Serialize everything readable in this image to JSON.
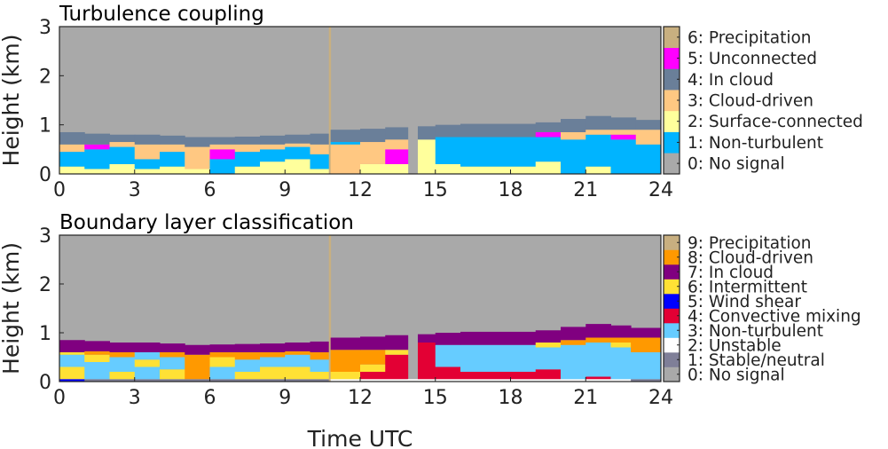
{
  "chart_data": [
    {
      "type": "heatmap",
      "title": "Turbulence coupling",
      "ylabel": "Height (km)",
      "xlabel": "",
      "xlim": [
        0,
        24
      ],
      "ylim": [
        0,
        3
      ],
      "xticks": [
        0,
        3,
        6,
        9,
        12,
        15,
        18,
        21,
        24
      ],
      "yticks": [
        0,
        1,
        2,
        3
      ],
      "classes": [
        {
          "value": 0,
          "label": "0: No signal",
          "color": "#a9a9a9"
        },
        {
          "value": 1,
          "label": "1: Non-turbulent",
          "color": "#00b4ff"
        },
        {
          "value": 2,
          "label": "2: Surface-connected",
          "color": "#ffff9c"
        },
        {
          "value": 3,
          "label": "3: Cloud-driven",
          "color": "#ffc882"
        },
        {
          "value": 4,
          "label": "4: In cloud",
          "color": "#6a7f99"
        },
        {
          "value": 5,
          "label": "5: Unconnected",
          "color": "#ff00ff"
        },
        {
          "value": 6,
          "label": "6: Precipitation",
          "color": "#c8af80"
        }
      ],
      "columns": [
        {
          "t": 0,
          "layers": [
            [
              2,
              0.15
            ],
            [
              1,
              0.45
            ],
            [
              3,
              0.6
            ],
            [
              4,
              0.85
            ]
          ]
        },
        {
          "t": 1,
          "layers": [
            [
              2,
              0.1
            ],
            [
              1,
              0.5
            ],
            [
              5,
              0.6
            ],
            [
              4,
              0.82
            ]
          ]
        },
        {
          "t": 2,
          "layers": [
            [
              2,
              0.2
            ],
            [
              1,
              0.55
            ],
            [
              3,
              0.65
            ],
            [
              4,
              0.8
            ]
          ]
        },
        {
          "t": 3,
          "layers": [
            [
              2,
              0.1
            ],
            [
              1,
              0.3
            ],
            [
              3,
              0.6
            ],
            [
              4,
              0.8
            ]
          ]
        },
        {
          "t": 4,
          "layers": [
            [
              2,
              0.15
            ],
            [
              1,
              0.45
            ],
            [
              3,
              0.6
            ],
            [
              4,
              0.78
            ]
          ]
        },
        {
          "t": 5,
          "layers": [
            [
              2,
              0.1
            ],
            [
              3,
              0.55
            ],
            [
              4,
              0.75
            ]
          ]
        },
        {
          "t": 6,
          "layers": [
            [
              1,
              0.3
            ],
            [
              5,
              0.5
            ],
            [
              3,
              0.6
            ],
            [
              4,
              0.75
            ]
          ]
        },
        {
          "t": 7,
          "layers": [
            [
              2,
              0.15
            ],
            [
              1,
              0.45
            ],
            [
              3,
              0.6
            ],
            [
              4,
              0.76
            ]
          ]
        },
        {
          "t": 8,
          "layers": [
            [
              2,
              0.25
            ],
            [
              1,
              0.5
            ],
            [
              3,
              0.6
            ],
            [
              4,
              0.78
            ]
          ]
        },
        {
          "t": 9,
          "layers": [
            [
              2,
              0.3
            ],
            [
              1,
              0.55
            ],
            [
              3,
              0.62
            ],
            [
              4,
              0.8
            ]
          ]
        },
        {
          "t": 10,
          "layers": [
            [
              2,
              0.1
            ],
            [
              1,
              0.4
            ],
            [
              3,
              0.6
            ],
            [
              4,
              0.82
            ]
          ]
        },
        {
          "t": 10.75,
          "layers": [
            [
              6,
              3
            ]
          ]
        },
        {
          "t": 10.82,
          "layers": [
            [
              3,
              0.6
            ],
            [
              1,
              0.65
            ],
            [
              4,
              0.9
            ]
          ]
        },
        {
          "t": 12,
          "layers": [
            [
              2,
              0.2
            ],
            [
              3,
              0.65
            ],
            [
              4,
              0.92
            ]
          ]
        },
        {
          "t": 13,
          "layers": [
            [
              2,
              0.2
            ],
            [
              5,
              0.5
            ],
            [
              3,
              0.7
            ],
            [
              4,
              0.95
            ]
          ]
        },
        {
          "t": 13.9,
          "layers": []
        },
        {
          "t": 14.3,
          "layers": [
            [
              2,
              0.7
            ],
            [
              4,
              0.97
            ]
          ]
        },
        {
          "t": 15,
          "layers": [
            [
              2,
              0.2
            ],
            [
              1,
              0.75
            ],
            [
              4,
              1.0
            ]
          ]
        },
        {
          "t": 16,
          "layers": [
            [
              2,
              0.15
            ],
            [
              1,
              0.75
            ],
            [
              4,
              1.02
            ]
          ]
        },
        {
          "t": 19,
          "layers": [
            [
              2,
              0.25
            ],
            [
              1,
              0.75
            ],
            [
              5,
              0.85
            ],
            [
              4,
              1.05
            ]
          ]
        },
        {
          "t": 20,
          "layers": [
            [
              1,
              0.7
            ],
            [
              3,
              0.85
            ],
            [
              4,
              1.12
            ]
          ]
        },
        {
          "t": 21,
          "layers": [
            [
              2,
              0.15
            ],
            [
              1,
              0.8
            ],
            [
              3,
              0.9
            ],
            [
              4,
              1.18
            ]
          ]
        },
        {
          "t": 22,
          "layers": [
            [
              1,
              0.7
            ],
            [
              5,
              0.8
            ],
            [
              3,
              0.9
            ],
            [
              4,
              1.15
            ]
          ]
        },
        {
          "t": 23,
          "layers": [
            [
              1,
              0.6
            ],
            [
              3,
              0.9
            ],
            [
              4,
              1.1
            ]
          ]
        }
      ]
    },
    {
      "type": "heatmap",
      "title": "Boundary layer classification",
      "ylabel": "Height (km)",
      "xlabel": "Time UTC",
      "xlim": [
        0,
        24
      ],
      "ylim": [
        0,
        3
      ],
      "xticks": [
        0,
        3,
        6,
        9,
        12,
        15,
        18,
        21,
        24
      ],
      "yticks": [
        0,
        1,
        2,
        3
      ],
      "classes": [
        {
          "value": 0,
          "label": "0: No signal",
          "color": "#a9a9a9"
        },
        {
          "value": 1,
          "label": "1: Stable/neutral",
          "color": "#7f7f98"
        },
        {
          "value": 2,
          "label": "2: Unstable",
          "color": "#ffffff"
        },
        {
          "value": 3,
          "label": "3: Non-turbulent",
          "color": "#66ccff"
        },
        {
          "value": 4,
          "label": "4: Convective mixing",
          "color": "#e30034"
        },
        {
          "value": 5,
          "label": "5: Wind shear",
          "color": "#0000ff"
        },
        {
          "value": 6,
          "label": "6: Intermittent",
          "color": "#ffe135"
        },
        {
          "value": 7,
          "label": "7: In cloud",
          "color": "#800080"
        },
        {
          "value": 8,
          "label": "8: Cloud-driven",
          "color": "#ff9900"
        },
        {
          "value": 9,
          "label": "9: Precipitation",
          "color": "#c8af80"
        }
      ],
      "columns": [
        {
          "t": 0,
          "layers": [
            [
              5,
              0.05
            ],
            [
              6,
              0.3
            ],
            [
              3,
              0.55
            ],
            [
              6,
              0.6
            ],
            [
              7,
              0.85
            ]
          ]
        },
        {
          "t": 1,
          "layers": [
            [
              1,
              0.05
            ],
            [
              3,
              0.4
            ],
            [
              6,
              0.55
            ],
            [
              8,
              0.62
            ],
            [
              7,
              0.83
            ]
          ]
        },
        {
          "t": 2,
          "layers": [
            [
              1,
              0.05
            ],
            [
              6,
              0.2
            ],
            [
              3,
              0.5
            ],
            [
              8,
              0.6
            ],
            [
              7,
              0.8
            ]
          ]
        },
        {
          "t": 3,
          "layers": [
            [
              1,
              0.05
            ],
            [
              3,
              0.3
            ],
            [
              6,
              0.45
            ],
            [
              3,
              0.6
            ],
            [
              7,
              0.8
            ]
          ]
        },
        {
          "t": 4,
          "layers": [
            [
              1,
              0.05
            ],
            [
              6,
              0.25
            ],
            [
              3,
              0.5
            ],
            [
              8,
              0.6
            ],
            [
              7,
              0.78
            ]
          ]
        },
        {
          "t": 5,
          "layers": [
            [
              1,
              0.05
            ],
            [
              8,
              0.55
            ],
            [
              7,
              0.75
            ]
          ]
        },
        {
          "t": 6,
          "layers": [
            [
              1,
              0.05
            ],
            [
              3,
              0.3
            ],
            [
              6,
              0.5
            ],
            [
              8,
              0.6
            ],
            [
              7,
              0.76
            ]
          ]
        },
        {
          "t": 7,
          "layers": [
            [
              1,
              0.05
            ],
            [
              6,
              0.2
            ],
            [
              3,
              0.45
            ],
            [
              8,
              0.6
            ],
            [
              7,
              0.77
            ]
          ]
        },
        {
          "t": 8,
          "layers": [
            [
              1,
              0.05
            ],
            [
              6,
              0.3
            ],
            [
              3,
              0.5
            ],
            [
              8,
              0.6
            ],
            [
              7,
              0.78
            ]
          ]
        },
        {
          "t": 9,
          "layers": [
            [
              1,
              0.05
            ],
            [
              6,
              0.3
            ],
            [
              3,
              0.55
            ],
            [
              8,
              0.62
            ],
            [
              7,
              0.8
            ]
          ]
        },
        {
          "t": 10,
          "layers": [
            [
              1,
              0.05
            ],
            [
              6,
              0.2
            ],
            [
              3,
              0.45
            ],
            [
              8,
              0.6
            ],
            [
              7,
              0.82
            ]
          ]
        },
        {
          "t": 10.75,
          "layers": [
            [
              9,
              3
            ]
          ]
        },
        {
          "t": 10.82,
          "layers": [
            [
              2,
              0.05
            ],
            [
              6,
              0.2
            ],
            [
              8,
              0.65
            ],
            [
              7,
              0.9
            ]
          ]
        },
        {
          "t": 12,
          "layers": [
            [
              2,
              0.05
            ],
            [
              4,
              0.2
            ],
            [
              6,
              0.35
            ],
            [
              8,
              0.65
            ],
            [
              7,
              0.92
            ]
          ]
        },
        {
          "t": 13,
          "layers": [
            [
              2,
              0.05
            ],
            [
              4,
              0.55
            ],
            [
              6,
              0.65
            ],
            [
              7,
              0.95
            ]
          ]
        },
        {
          "t": 13.9,
          "layers": [
            [
              2,
              0.05
            ]
          ]
        },
        {
          "t": 14.3,
          "layers": [
            [
              2,
              0.05
            ],
            [
              4,
              0.8
            ],
            [
              7,
              0.97
            ]
          ]
        },
        {
          "t": 15,
          "layers": [
            [
              2,
              0.05
            ],
            [
              4,
              0.3
            ],
            [
              3,
              0.75
            ],
            [
              7,
              1.0
            ]
          ]
        },
        {
          "t": 16,
          "layers": [
            [
              2,
              0.05
            ],
            [
              4,
              0.2
            ],
            [
              3,
              0.75
            ],
            [
              7,
              1.02
            ]
          ]
        },
        {
          "t": 19,
          "layers": [
            [
              2,
              0.05
            ],
            [
              4,
              0.25
            ],
            [
              3,
              0.7
            ],
            [
              6,
              0.8
            ],
            [
              7,
              1.05
            ]
          ]
        },
        {
          "t": 20,
          "layers": [
            [
              2,
              0.05
            ],
            [
              3,
              0.75
            ],
            [
              8,
              0.85
            ],
            [
              7,
              1.12
            ]
          ]
        },
        {
          "t": 21,
          "layers": [
            [
              2,
              0.05
            ],
            [
              4,
              0.1
            ],
            [
              3,
              0.8
            ],
            [
              8,
              0.9
            ],
            [
              7,
              1.18
            ]
          ]
        },
        {
          "t": 22,
          "layers": [
            [
              2,
              0.05
            ],
            [
              3,
              0.7
            ],
            [
              6,
              0.8
            ],
            [
              8,
              0.9
            ],
            [
              7,
              1.15
            ]
          ]
        },
        {
          "t": 22.8,
          "layers": [
            [
              1,
              0.05
            ],
            [
              3,
              0.6
            ],
            [
              8,
              0.9
            ],
            [
              7,
              1.1
            ]
          ]
        }
      ]
    }
  ]
}
